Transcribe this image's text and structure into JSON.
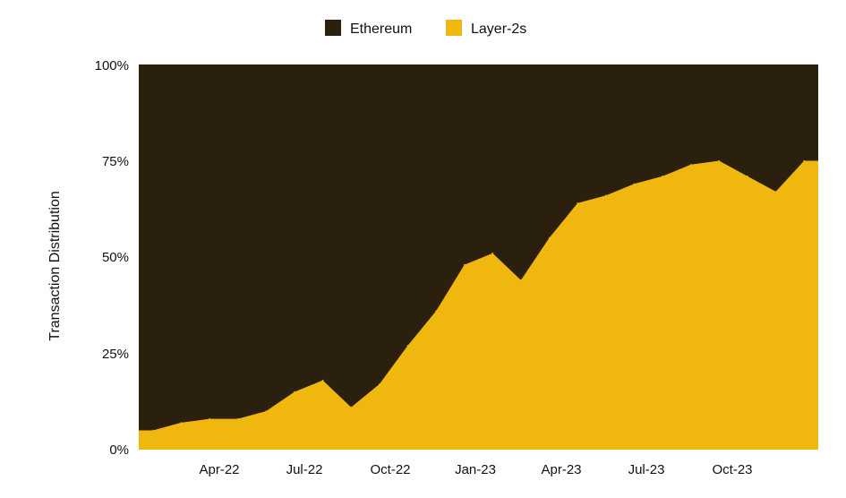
{
  "chart_data": {
    "type": "area",
    "stacked_percent": true,
    "title": "",
    "xlabel": "",
    "ylabel": "Transaction Distribution",
    "ylim": [
      0,
      100
    ],
    "y_ticks": [
      "0%",
      "25%",
      "50%",
      "75%",
      "100%"
    ],
    "x_ticks": [
      "Apr-22",
      "Jul-22",
      "Oct-22",
      "Jan-23",
      "Apr-23",
      "Jul-23",
      "Oct-23"
    ],
    "x_range": [
      "Jan-22",
      "Dec-23"
    ],
    "legend_position": "top-center",
    "legend": [
      {
        "name": "Ethereum",
        "color": "#2b1f0e"
      },
      {
        "name": "Layer-2s",
        "color": "#f0b70f"
      }
    ],
    "series": [
      {
        "name": "Layer-2s",
        "x": [
          "Jan-22",
          "Feb-22",
          "Mar-22",
          "Apr-22",
          "May-22",
          "Jun-22",
          "Jul-22",
          "Aug-22",
          "Sep-22",
          "Oct-22",
          "Nov-22",
          "Dec-22",
          "Jan-23",
          "Feb-23",
          "Mar-23",
          "Apr-23",
          "May-23",
          "Jun-23",
          "Jul-23",
          "Aug-23",
          "Sep-23",
          "Oct-23",
          "Nov-23",
          "Dec-23"
        ],
        "values": [
          5,
          7,
          8,
          8,
          10,
          15,
          18,
          11,
          17,
          27,
          36,
          48,
          51,
          44,
          55,
          64,
          66,
          69,
          71,
          74,
          75,
          71,
          67,
          75
        ]
      },
      {
        "name": "Ethereum",
        "x": [
          "Jan-22",
          "Feb-22",
          "Mar-22",
          "Apr-22",
          "May-22",
          "Jun-22",
          "Jul-22",
          "Aug-22",
          "Sep-22",
          "Oct-22",
          "Nov-22",
          "Dec-22",
          "Jan-23",
          "Feb-23",
          "Mar-23",
          "Apr-23",
          "May-23",
          "Jun-23",
          "Jul-23",
          "Aug-23",
          "Sep-23",
          "Oct-23",
          "Nov-23",
          "Dec-23"
        ],
        "values": [
          95,
          93,
          92,
          92,
          90,
          85,
          82,
          89,
          83,
          73,
          64,
          52,
          49,
          56,
          45,
          36,
          34,
          31,
          29,
          26,
          25,
          29,
          33,
          25
        ]
      }
    ]
  }
}
